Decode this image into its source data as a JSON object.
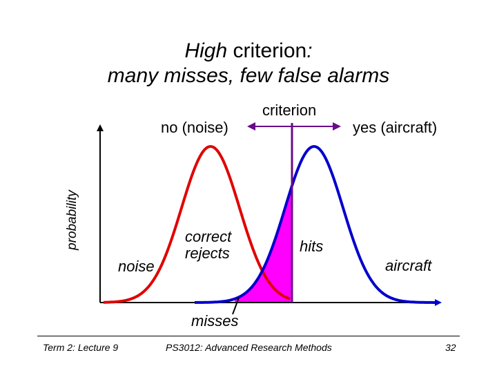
{
  "title": {
    "line1_em": "High",
    "line1_rest": " criterion",
    "line1_colon": ":",
    "line2": "many misses, few false alarms"
  },
  "labels": {
    "criterion": "criterion",
    "no_noise": "no (noise)",
    "yes_aircraft": "yes (aircraft)",
    "probability": "probability",
    "noise": "noise",
    "correct_rejects_1": "correct",
    "correct_rejects_2": "rejects",
    "hits": "hits",
    "aircraft": "aircraft",
    "misses": "misses"
  },
  "footer": {
    "left": "Term 2: Lecture 9",
    "center": "PS3012: Advanced Research Methods",
    "page_number": "32"
  },
  "colors": {
    "noise_curve": "#e00000",
    "signal_curve": "#0000cc",
    "criterion_line": "#6a0a8a",
    "hits_fill": "#ff00ff"
  }
}
